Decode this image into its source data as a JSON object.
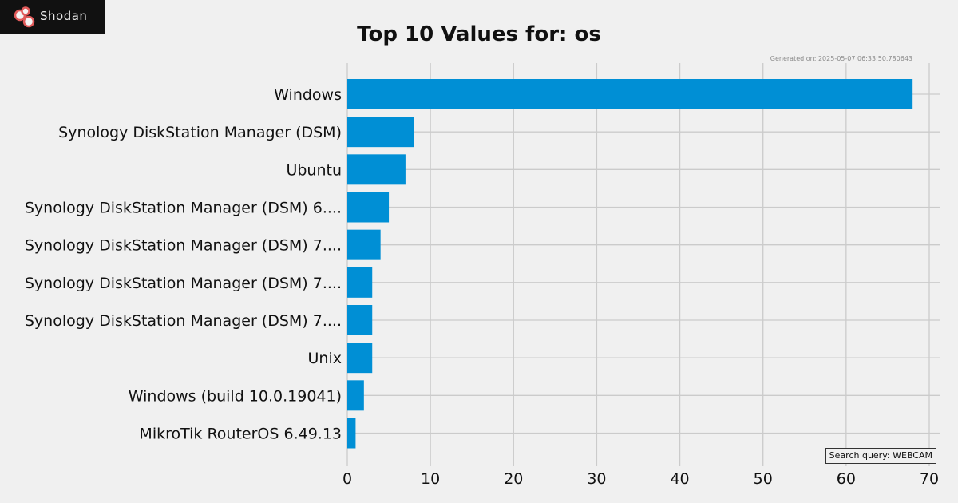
{
  "logo": {
    "text": "Shodan",
    "colors": {
      "background": "#111111",
      "ring": "#e05a5a"
    }
  },
  "generated": "Generated on: 2025-05-07 06:33:50.780643",
  "search_query": "Search query: WEBCAM",
  "chart_data": {
    "type": "bar",
    "orientation": "horizontal",
    "title": "Top 10 Values for: os",
    "xlabel": "",
    "ylabel": "",
    "xlim": [
      0,
      71
    ],
    "xticks": [
      0,
      10,
      20,
      30,
      40,
      50,
      60,
      70
    ],
    "grid": true,
    "bar_color": "#008fd5",
    "categories": [
      "Windows",
      "Synology DiskStation Manager (DSM)",
      "Ubuntu",
      "Synology DiskStation Manager (DSM) 6....",
      "Synology DiskStation Manager (DSM) 7....",
      "Synology DiskStation Manager (DSM) 7....",
      "Synology DiskStation Manager (DSM) 7....",
      "Unix",
      "Windows (build 10.0.19041)",
      "MikroTik RouterOS 6.49.13"
    ],
    "values": [
      68,
      8,
      7,
      5,
      4,
      3,
      3,
      3,
      2,
      1
    ]
  }
}
